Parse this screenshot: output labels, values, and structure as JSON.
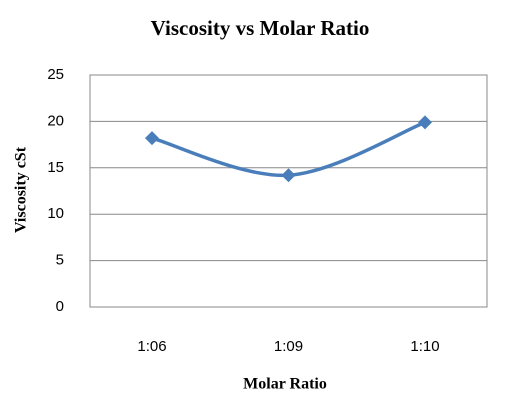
{
  "chart_data": {
    "type": "line",
    "title": "Viscosity vs Molar Ratio",
    "x_label": "Molar Ratio",
    "y_label": "Viscosity cSt",
    "categories": [
      "1:06",
      "1:09",
      "1:10"
    ],
    "series": [
      {
        "name": "Viscosity",
        "color": "#4a7ebb",
        "values": [
          18.2,
          14.2,
          19.9
        ]
      }
    ],
    "ylim": [
      0,
      25
    ],
    "yticks": [
      0,
      5,
      10,
      15,
      20,
      25
    ],
    "grid": true,
    "smooth": true
  }
}
